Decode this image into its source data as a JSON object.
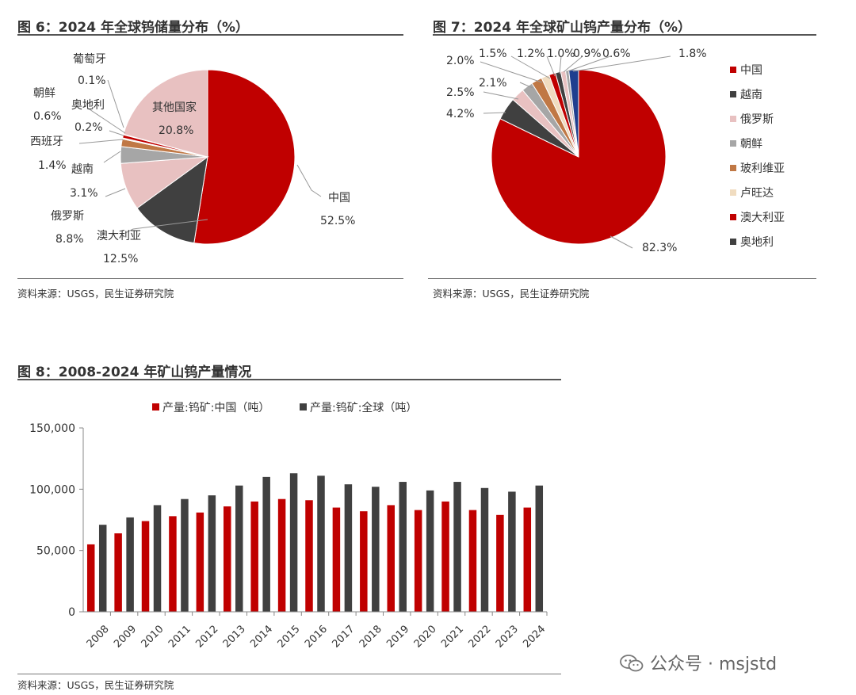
{
  "fig6": {
    "title": "图 6：2024 年全球钨储量分布（%）",
    "source": "资料来源：USGS，民生证券研究院"
  },
  "fig7": {
    "title": "图 7：2024 年全球矿山钨产量分布（%）",
    "source": "资料来源：USGS，民生证券研究院"
  },
  "fig8": {
    "title": "图 8：2008-2024 年矿山钨产量情况",
    "source": "资料来源：USGS，民生证券研究院"
  },
  "watermark": {
    "text": "公众号 · msjstd",
    "icon": "wechat-icon"
  },
  "chart_data": [
    {
      "type": "pie",
      "slices": [
        {
          "label": "中国",
          "value_label": "52.5%",
          "value": 52.5,
          "color": "#c00000"
        },
        {
          "label": "澳大利亚",
          "value_label": "12.5%",
          "value": 12.5,
          "color": "#404040"
        },
        {
          "label": "俄罗斯",
          "value_label": "8.8%",
          "value": 8.8,
          "color": "#e8c1c1"
        },
        {
          "label": "越南",
          "value_label": "3.1%",
          "value": 3.1,
          "color": "#a6a6a6"
        },
        {
          "label": "西班牙",
          "value_label": "1.4%",
          "value": 1.4,
          "color": "#c07845"
        },
        {
          "label": "奥地利",
          "value_label": "0.2%",
          "value": 0.2,
          "color": "#f0dcc0"
        },
        {
          "label": "朝鲜",
          "value_label": "0.6%",
          "value": 0.6,
          "color": "#c00000"
        },
        {
          "label": "葡萄牙",
          "value_label": "0.1%",
          "value": 0.1,
          "color": "#404040"
        },
        {
          "label": "其他国家",
          "value_label": "20.8%",
          "value": 20.8,
          "color": "#e8c1c1"
        }
      ]
    },
    {
      "type": "pie",
      "slices": [
        {
          "label": "中国",
          "value_label": "82.3%",
          "value": 82.3,
          "color": "#c00000"
        },
        {
          "label": "越南",
          "value_label": "4.2%",
          "value": 4.2,
          "color": "#404040"
        },
        {
          "label": "俄罗斯",
          "value_label": "2.5%",
          "value": 2.5,
          "color": "#e8c1c1"
        },
        {
          "label": "朝鲜",
          "value_label": "2.1%",
          "value": 2.1,
          "color": "#a6a6a6"
        },
        {
          "label": "玻利维亚",
          "value_label": "2.0%",
          "value": 2.0,
          "color": "#c07845"
        },
        {
          "label": "卢旺达",
          "value_label": "1.5%",
          "value": 1.5,
          "color": "#f0dcc0"
        },
        {
          "label": "澳大利亚",
          "value_label": "1.2%",
          "value": 1.2,
          "color": "#c00000"
        },
        {
          "label": "奥地利",
          "value_label": "1.0%",
          "value": 1.0,
          "color": "#404040"
        },
        {
          "label": "",
          "value_label": "0.9%",
          "value": 0.9,
          "color": "#e8c1c1"
        },
        {
          "label": "",
          "value_label": "0.6%",
          "value": 0.6,
          "color": "#a6a6a6"
        },
        {
          "label": "",
          "value_label": "1.8%",
          "value": 1.8,
          "color": "#1f3f8f"
        }
      ],
      "legend": [
        "中国",
        "越南",
        "俄罗斯",
        "朝鲜",
        "玻利维亚",
        "卢旺达",
        "澳大利亚",
        "奥地利"
      ],
      "legend_position": "right"
    },
    {
      "type": "bar",
      "categories": [
        "2008",
        "2009",
        "2010",
        "2011",
        "2012",
        "2013",
        "2014",
        "2015",
        "2016",
        "2017",
        "2018",
        "2019",
        "2020",
        "2021",
        "2022",
        "2023",
        "2024"
      ],
      "series": [
        {
          "name": "产量:钨矿:中国（吨）",
          "color": "#c00000",
          "values": [
            55000,
            64000,
            74000,
            78000,
            81000,
            86000,
            90000,
            92000,
            91000,
            85000,
            82000,
            87000,
            83000,
            90000,
            83000,
            79000,
            85000
          ]
        },
        {
          "name": "产量:钨矿:全球（吨）",
          "color": "#404040",
          "values": [
            71000,
            77000,
            87000,
            92000,
            95000,
            103000,
            110000,
            113000,
            111000,
            104000,
            102000,
            106000,
            99000,
            106000,
            101000,
            98000,
            103000
          ]
        }
      ],
      "ylim": [
        0,
        150000
      ],
      "yticks": [
        "0",
        "50,000",
        "100,000",
        "150,000"
      ],
      "legend_position": "top",
      "grid": false
    }
  ]
}
